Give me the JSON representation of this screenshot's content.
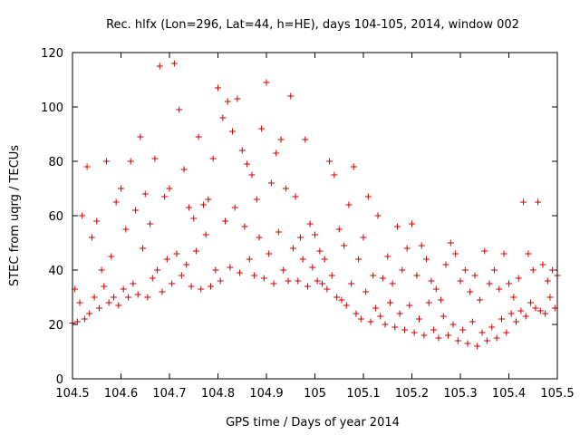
{
  "chart_data": {
    "type": "scatter",
    "title": "Rec. hlfx (Lon=296, Lat=44, h=HE), days 104-105, 2014, window 002",
    "xlabel": "GPS time / Days of year 2014",
    "ylabel": "STEC from uqrg / TECUs",
    "xlim": [
      104.5,
      105.5
    ],
    "ylim": [
      0,
      120
    ],
    "xticks": [
      "104.5",
      "104.6",
      "104.7",
      "104.8",
      "104.9",
      "105",
      "105.1",
      "105.2",
      "105.3",
      "105.4",
      "105.5"
    ],
    "yticks": [
      "0",
      "20",
      "40",
      "60",
      "80",
      "100",
      "120"
    ],
    "grid": false,
    "legend": "none",
    "marker": "+",
    "color": "#cc0000",
    "series": [
      {
        "points": [
          [
            104.5,
            20.5
          ],
          [
            104.505,
            33
          ],
          [
            104.51,
            21
          ],
          [
            104.515,
            28
          ],
          [
            104.52,
            60
          ],
          [
            104.525,
            22
          ],
          [
            104.53,
            78
          ],
          [
            104.535,
            24
          ],
          [
            104.54,
            52
          ],
          [
            104.545,
            30
          ],
          [
            104.55,
            58
          ],
          [
            104.555,
            26
          ],
          [
            104.56,
            40
          ],
          [
            104.565,
            34
          ],
          [
            104.57,
            80
          ],
          [
            104.575,
            28
          ],
          [
            104.58,
            45
          ],
          [
            104.585,
            30
          ],
          [
            104.59,
            65
          ],
          [
            104.595,
            27
          ],
          [
            104.6,
            70
          ],
          [
            104.605,
            33
          ],
          [
            104.61,
            55
          ],
          [
            104.615,
            30
          ],
          [
            104.62,
            80
          ],
          [
            104.625,
            35
          ],
          [
            104.63,
            62
          ],
          [
            104.635,
            31
          ],
          [
            104.64,
            89
          ],
          [
            104.645,
            48
          ],
          [
            104.65,
            68
          ],
          [
            104.655,
            30
          ],
          [
            104.66,
            57
          ],
          [
            104.665,
            37
          ],
          [
            104.67,
            81
          ],
          [
            104.675,
            40
          ],
          [
            104.68,
            115
          ],
          [
            104.685,
            32
          ],
          [
            104.69,
            67
          ],
          [
            104.695,
            44
          ],
          [
            104.7,
            70
          ],
          [
            104.705,
            35
          ],
          [
            104.71,
            116
          ],
          [
            104.715,
            46
          ],
          [
            104.72,
            99
          ],
          [
            104.725,
            38
          ],
          [
            104.73,
            77
          ],
          [
            104.735,
            42
          ],
          [
            104.74,
            63
          ],
          [
            104.745,
            34
          ],
          [
            104.75,
            59
          ],
          [
            104.755,
            47
          ],
          [
            104.76,
            89
          ],
          [
            104.765,
            33
          ],
          [
            104.77,
            64
          ],
          [
            104.775,
            53
          ],
          [
            104.78,
            66
          ],
          [
            104.785,
            34
          ],
          [
            104.79,
            81
          ],
          [
            104.795,
            40
          ],
          [
            104.8,
            107
          ],
          [
            104.805,
            36
          ],
          [
            104.81,
            96
          ],
          [
            104.815,
            58
          ],
          [
            104.82,
            102
          ],
          [
            104.825,
            41
          ],
          [
            104.83,
            91
          ],
          [
            104.835,
            63
          ],
          [
            104.84,
            103
          ],
          [
            104.845,
            39
          ],
          [
            104.85,
            84
          ],
          [
            104.855,
            56
          ],
          [
            104.86,
            79
          ],
          [
            104.865,
            44
          ],
          [
            104.87,
            75
          ],
          [
            104.875,
            38
          ],
          [
            104.88,
            66
          ],
          [
            104.885,
            52
          ],
          [
            104.89,
            92
          ],
          [
            104.895,
            37
          ],
          [
            104.9,
            109
          ],
          [
            104.905,
            46
          ],
          [
            104.91,
            72
          ],
          [
            104.915,
            35
          ],
          [
            104.92,
            83
          ],
          [
            104.925,
            54
          ],
          [
            104.93,
            88
          ],
          [
            104.935,
            40
          ],
          [
            104.94,
            70
          ],
          [
            104.945,
            36
          ],
          [
            104.95,
            104
          ],
          [
            104.955,
            48
          ],
          [
            104.96,
            67
          ],
          [
            104.965,
            36
          ],
          [
            104.97,
            52
          ],
          [
            104.975,
            44
          ],
          [
            104.98,
            88
          ],
          [
            104.985,
            34
          ],
          [
            104.99,
            57
          ],
          [
            104.995,
            41
          ],
          [
            105.0,
            53
          ],
          [
            105.005,
            36
          ],
          [
            105.01,
            47
          ],
          [
            105.015,
            35
          ],
          [
            105.02,
            44
          ],
          [
            105.025,
            33
          ],
          [
            105.03,
            80
          ],
          [
            105.035,
            38
          ],
          [
            105.04,
            75
          ],
          [
            105.045,
            30
          ],
          [
            105.05,
            55
          ],
          [
            105.055,
            29
          ],
          [
            105.06,
            49
          ],
          [
            105.065,
            27
          ],
          [
            105.07,
            64
          ],
          [
            105.075,
            35
          ],
          [
            105.08,
            78
          ],
          [
            105.085,
            24
          ],
          [
            105.09,
            44
          ],
          [
            105.095,
            22
          ],
          [
            105.1,
            52
          ],
          [
            105.105,
            32
          ],
          [
            105.11,
            67
          ],
          [
            105.115,
            21
          ],
          [
            105.12,
            38
          ],
          [
            105.125,
            26
          ],
          [
            105.13,
            60
          ],
          [
            105.135,
            23
          ],
          [
            105.14,
            37
          ],
          [
            105.145,
            20
          ],
          [
            105.15,
            45
          ],
          [
            105.155,
            28
          ],
          [
            105.16,
            35
          ],
          [
            105.165,
            19
          ],
          [
            105.17,
            56
          ],
          [
            105.175,
            24
          ],
          [
            105.18,
            40
          ],
          [
            105.185,
            18
          ],
          [
            105.19,
            48
          ],
          [
            105.195,
            27
          ],
          [
            105.2,
            57
          ],
          [
            105.205,
            17
          ],
          [
            105.21,
            38
          ],
          [
            105.215,
            22
          ],
          [
            105.22,
            49
          ],
          [
            105.225,
            16
          ],
          [
            105.23,
            44
          ],
          [
            105.235,
            28
          ],
          [
            105.24,
            36
          ],
          [
            105.245,
            18
          ],
          [
            105.25,
            33
          ],
          [
            105.255,
            15
          ],
          [
            105.26,
            29
          ],
          [
            105.265,
            23
          ],
          [
            105.27,
            42
          ],
          [
            105.275,
            16
          ],
          [
            105.28,
            50
          ],
          [
            105.285,
            20
          ],
          [
            105.29,
            46
          ],
          [
            105.295,
            14
          ],
          [
            105.3,
            36
          ],
          [
            105.305,
            18
          ],
          [
            105.31,
            40
          ],
          [
            105.315,
            13
          ],
          [
            105.32,
            32
          ],
          [
            105.325,
            21
          ],
          [
            105.33,
            38
          ],
          [
            105.335,
            12
          ],
          [
            105.34,
            29
          ],
          [
            105.345,
            17
          ],
          [
            105.35,
            47
          ],
          [
            105.355,
            14
          ],
          [
            105.36,
            35
          ],
          [
            105.365,
            19
          ],
          [
            105.37,
            40
          ],
          [
            105.375,
            15
          ],
          [
            105.38,
            33
          ],
          [
            105.385,
            22
          ],
          [
            105.39,
            46
          ],
          [
            105.395,
            17
          ],
          [
            105.4,
            35
          ],
          [
            105.405,
            24
          ],
          [
            105.41,
            30
          ],
          [
            105.415,
            21
          ],
          [
            105.42,
            37
          ],
          [
            105.425,
            25
          ],
          [
            105.43,
            65
          ],
          [
            105.435,
            23
          ],
          [
            105.44,
            46
          ],
          [
            105.445,
            28
          ],
          [
            105.45,
            40
          ],
          [
            105.455,
            26
          ],
          [
            105.46,
            65
          ],
          [
            105.465,
            25
          ],
          [
            105.47,
            42
          ],
          [
            105.475,
            24
          ],
          [
            105.48,
            36
          ],
          [
            105.485,
            30
          ],
          [
            105.49,
            40
          ],
          [
            105.495,
            26
          ],
          [
            105.5,
            38
          ]
        ]
      }
    ]
  }
}
